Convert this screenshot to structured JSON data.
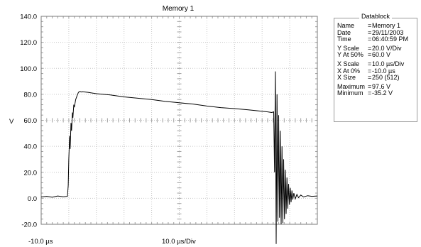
{
  "chart_data": {
    "type": "line",
    "title": "Memory 1",
    "ylabel": "V",
    "xlabel": "10.0 µs/Div",
    "x_start_label": "-10.0 µs",
    "ylim": [
      -20,
      140
    ],
    "xlim": [
      -10,
      90
    ],
    "x_unit": "µs",
    "y_ticks": [
      "140.0",
      "120.0",
      "100.0",
      "80.0",
      "60.0",
      "40.0",
      "20.0",
      "0.0",
      "-20.0"
    ],
    "grid": true,
    "series": [
      {
        "x": [
          -10.0,
          -8.0,
          -6.0,
          -4.0,
          -2.0,
          -0.5,
          -0.2,
          0.0,
          0.3,
          0.5,
          0.8,
          1.0,
          1.3,
          1.5,
          1.8,
          2.0,
          2.5,
          3.0,
          3.5,
          4.0,
          4.5,
          5.0,
          7.0,
          10.0,
          15.0,
          20.0,
          25.0,
          30.0,
          35.0,
          40.0,
          45.0,
          50.0,
          55.0,
          60.0,
          65.0,
          70.0,
          72.0,
          73.5,
          74.2,
          74.5,
          74.8,
          75.1,
          75.4,
          75.7,
          76.0,
          76.3,
          76.6,
          76.9,
          77.2,
          77.5,
          77.8,
          78.1,
          78.4,
          78.7,
          79.0,
          79.3,
          79.6,
          79.9,
          80.2,
          80.5,
          80.8,
          81.1,
          81.5,
          82.0,
          82.6,
          83.2,
          84.0,
          85.0,
          86.5,
          88.0,
          90.0
        ],
        "y": [
          1.0,
          1.5,
          0.8,
          1.8,
          1.2,
          1.5,
          10.0,
          30.0,
          48.0,
          38.0,
          58.0,
          52.0,
          66.0,
          62.0,
          72.0,
          70.0,
          76.0,
          79.0,
          81.5,
          82.2,
          81.8,
          82.0,
          81.5,
          80.5,
          79.5,
          78.0,
          77.0,
          76.0,
          74.5,
          73.5,
          72.5,
          71.0,
          69.8,
          69.0,
          68.0,
          67.0,
          66.5,
          66.0,
          66.5,
          20.0,
          97.6,
          -35.2,
          80.0,
          -18.0,
          64.0,
          -15.0,
          52.0,
          -20.0,
          40.0,
          -19.0,
          30.0,
          -16.0,
          22.0,
          -12.0,
          16.0,
          -8.0,
          11.0,
          -5.0,
          8.0,
          -3.0,
          6.0,
          -1.0,
          4.0,
          -0.5,
          3.0,
          0.5,
          2.5,
          1.0,
          2.0,
          1.5,
          1.8
        ]
      }
    ]
  },
  "datablock": {
    "legend": "Datablock",
    "rows": [
      {
        "k": "Name",
        "eq": "=",
        "v": "Memory 1"
      },
      {
        "k": "Date",
        "eq": "=",
        "v": "29/11/2003"
      },
      {
        "k": "Time",
        "eq": "=",
        "v": "06:40:59 PM"
      },
      {
        "k": "Y Scale",
        "eq": "=",
        "v": "20.0 V/Div"
      },
      {
        "k": "Y At 50%",
        "eq": "=",
        "v": "60.0 V"
      },
      {
        "k": "X Scale",
        "eq": "=",
        "v": "10.0 µs/Div"
      },
      {
        "k": "X At 0%",
        "eq": "=",
        "v": "-10.0 µs"
      },
      {
        "k": "X Size",
        "eq": "=",
        "v": "250   (512)"
      },
      {
        "k": "Maximum",
        "eq": "=",
        "v": "97.6 V"
      },
      {
        "k": "Minimum",
        "eq": "=",
        "v": "-35.2 V"
      }
    ]
  },
  "colors": {
    "trace": "#000000",
    "grid": "#c8c8c8",
    "frame": "#7a7a7a"
  }
}
